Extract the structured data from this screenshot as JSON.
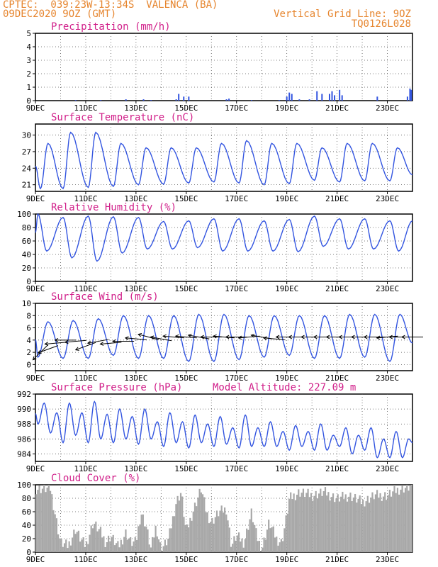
{
  "header": {
    "line1": "CPTEC:  039:23W-13:34S  VALENCA (BA)",
    "line2": "09DEC2020 9OZ (GMT)",
    "grid_note": "Vertical Grid Line: 9OZ",
    "code": "TQ0126L028"
  },
  "colors": {
    "header": "#e6852e",
    "title": "#d1208a",
    "series": "#3355e0",
    "cloud": "#a8a8a8",
    "arrow": "#000000"
  },
  "x_ticks": [
    "9DEC",
    "11DEC",
    "13DEC",
    "15DEC",
    "17DEC",
    "19DEC",
    "21DEC",
    "23DEC"
  ],
  "x_range_days": [
    9,
    24
  ],
  "chart_data": [
    {
      "id": "precip",
      "type": "bar",
      "title": "Precipitation (mm/h)",
      "ylim": [
        0,
        5
      ],
      "yticks": [
        "0",
        "1",
        "2",
        "3",
        "4",
        "5"
      ],
      "x": [
        10.6,
        11.6,
        12.6,
        13.3,
        13.6,
        14.6,
        14.7,
        14.9,
        15.1,
        16.6,
        16.7,
        17.6,
        18.7,
        19.0,
        19.1,
        19.2,
        19.5,
        19.9,
        20.2,
        20.4,
        20.7,
        20.8,
        20.9,
        21.1,
        21.2,
        22.6,
        23.8,
        23.9,
        23.95
      ],
      "values": [
        0.05,
        0.05,
        0.1,
        0.1,
        0.05,
        0.1,
        0.5,
        0.3,
        0.3,
        0.1,
        0.15,
        0.05,
        0.05,
        0.3,
        0.6,
        0.5,
        0.1,
        0.1,
        0.7,
        0.5,
        0.5,
        0.7,
        0.4,
        0.8,
        0.4,
        0.3,
        0.3,
        0.9,
        0.8
      ]
    },
    {
      "id": "temp",
      "type": "line",
      "title": "Surface Temperature (nC)",
      "ylim": [
        19.8,
        32
      ],
      "yticks": [
        "21",
        "24",
        "27",
        "30"
      ],
      "ytick_values": [
        21,
        24,
        27,
        30
      ],
      "max_x": [
        9.5,
        10.4,
        11.4,
        12.4,
        13.4,
        14.4,
        15.4,
        16.4,
        17.4,
        18.4,
        19.4,
        20.4,
        21.4,
        22.4,
        23.4
      ],
      "max_y": [
        28.5,
        30.5,
        30.5,
        28.5,
        27.7,
        27.7,
        27.7,
        28.5,
        29.0,
        28.5,
        28.5,
        27.7,
        28.5,
        28.5,
        27.7
      ],
      "min_x": [
        9.2,
        10.1,
        11.1,
        12.1,
        13.1,
        14.1,
        15.1,
        16.1,
        17.1,
        18.1,
        19.1,
        20.1,
        21.1,
        22.1,
        23.1
      ],
      "min_y": [
        20.3,
        20.3,
        20.5,
        20.7,
        21.0,
        21.1,
        21.3,
        21.5,
        21.3,
        21.0,
        21.2,
        21.8,
        21.5,
        21.7,
        21.7
      ],
      "end_y": 22.8
    },
    {
      "id": "rh",
      "type": "line",
      "title": "Relative Humidity (%)",
      "ylim": [
        0,
        100
      ],
      "yticks": [
        "0",
        "20",
        "40",
        "60",
        "80",
        "100"
      ],
      "ytick_values": [
        0,
        20,
        40,
        60,
        80,
        100
      ],
      "max_x": [
        9.1,
        10.1,
        11.1,
        12.1,
        13.1,
        14.1,
        15.1,
        16.1,
        17.1,
        18.1,
        19.1,
        20.1,
        21.1,
        22.1,
        23.1
      ],
      "max_y": [
        100,
        95,
        97,
        96,
        95,
        89,
        90,
        93,
        93,
        90,
        92,
        97,
        93,
        93,
        90
      ],
      "min_x": [
        9.45,
        10.45,
        11.45,
        12.45,
        13.45,
        14.45,
        15.45,
        16.45,
        17.45,
        18.45,
        19.45,
        20.45,
        21.45,
        22.45,
        23.45
      ],
      "min_y": [
        45,
        35,
        30,
        42,
        48,
        48,
        50,
        45,
        45,
        45,
        44,
        52,
        48,
        48,
        45
      ],
      "end_y": 90
    },
    {
      "id": "wind",
      "type": "line",
      "title": "Surface Wind (m/s)",
      "ylim": [
        -1,
        10
      ],
      "yticks": [
        "0",
        "2",
        "4",
        "6",
        "8",
        "10"
      ],
      "ytick_values": [
        0,
        2,
        4,
        6,
        8,
        10
      ],
      "max_x": [
        9.5,
        10.5,
        11.5,
        12.5,
        13.5,
        14.5,
        15.5,
        16.5,
        17.5,
        18.5,
        19.5,
        20.5,
        21.5,
        22.5,
        23.5
      ],
      "max_y": [
        7.0,
        7.2,
        7.5,
        8.0,
        8.0,
        8.0,
        8.2,
        8.2,
        8.0,
        8.0,
        8.0,
        8.0,
        8.2,
        8.2,
        8.2
      ],
      "min_x": [
        9.1,
        10.1,
        11.1,
        12.1,
        13.1,
        14.1,
        15.1,
        16.1,
        17.1,
        18.1,
        19.1,
        20.1,
        21.1,
        22.1,
        23.1
      ],
      "min_y": [
        1.2,
        1.0,
        1.0,
        1.5,
        1.0,
        1.0,
        0.5,
        0.5,
        0.8,
        1.2,
        1.5,
        1.0,
        1.0,
        1.2,
        0.5
      ],
      "end_y": 3.5,
      "vectors": {
        "x": [
          9.2,
          9.5,
          9.8,
          10.2,
          10.6,
          11.0,
          11.5,
          12.0,
          12.5,
          13.0,
          13.5,
          14.0,
          14.5,
          15.0,
          15.5,
          16.0,
          16.5,
          17.0,
          17.5,
          18.0,
          18.5,
          19.0,
          19.5,
          20.0,
          20.5,
          21.0,
          21.5,
          22.0,
          22.5,
          23.0,
          23.5,
          24.0
        ],
        "y": [
          2.0,
          2.5,
          3.5,
          4.0,
          3.8,
          3.0,
          3.8,
          3.5,
          3.8,
          4.2,
          4.5,
          4.2,
          4.5,
          4.5,
          4.5,
          4.5,
          4.5,
          4.5,
          4.5,
          4.5,
          4.2,
          4.5,
          4.5,
          4.5,
          4.5,
          4.5,
          4.5,
          4.5,
          4.5,
          4.5,
          4.5,
          4.5
        ],
        "dir_deg": [
          225,
          200,
          185,
          180,
          185,
          200,
          190,
          185,
          180,
          175,
          165,
          170,
          175,
          175,
          170,
          180,
          175,
          180,
          185,
          170,
          175,
          180,
          180,
          180,
          180,
          180,
          180,
          180,
          180,
          185,
          180,
          180
        ]
      }
    },
    {
      "id": "press",
      "type": "line",
      "title": "Surface Pressure (hPa)",
      "annotation": "Model Altitude: 227.09 m",
      "ylim": [
        983,
        992
      ],
      "yticks": [
        "984",
        "986",
        "988",
        "990",
        "992"
      ],
      "ytick_values": [
        984,
        986,
        988,
        990,
        992
      ],
      "max_x": [
        9.35,
        9.85,
        10.35,
        10.85,
        11.35,
        11.85,
        12.35,
        12.85,
        13.35,
        13.85,
        14.35,
        14.85,
        15.35,
        15.85,
        16.35,
        16.85,
        17.35,
        17.85,
        18.35,
        18.85,
        19.35,
        19.85,
        20.35,
        20.85,
        21.35,
        21.85,
        22.35,
        22.85,
        23.35,
        23.85
      ],
      "max_y": [
        990.8,
        989.5,
        990.8,
        989.5,
        991.0,
        989.3,
        990.0,
        989.0,
        990.0,
        988.3,
        989.5,
        988.3,
        989.2,
        988.0,
        989.0,
        987.5,
        989.2,
        987.5,
        988.3,
        987.0,
        987.8,
        987.0,
        988.0,
        986.5,
        987.5,
        986.5,
        987.5,
        986.0,
        987.0,
        986.0
      ],
      "min_x": [
        9.1,
        9.6,
        10.1,
        10.6,
        11.1,
        11.6,
        12.1,
        12.6,
        13.1,
        13.6,
        14.1,
        14.6,
        15.1,
        15.6,
        16.1,
        16.6,
        17.1,
        17.6,
        18.1,
        18.6,
        19.1,
        19.6,
        20.1,
        20.6,
        21.1,
        21.6,
        22.1,
        22.6,
        23.1,
        23.6
      ],
      "min_y": [
        988.0,
        986.8,
        985.5,
        986.5,
        985.5,
        986.0,
        985.5,
        986.0,
        985.3,
        986.0,
        985.0,
        985.5,
        984.8,
        985.5,
        985.0,
        985.3,
        984.8,
        985.0,
        985.0,
        985.0,
        984.5,
        985.0,
        984.5,
        984.5,
        985.0,
        984.0,
        984.5,
        983.5,
        983.5,
        983.5
      ],
      "end_y": 985.5
    },
    {
      "id": "cloud",
      "type": "area",
      "title": "Cloud Cover (%)",
      "ylim": [
        0,
        100
      ],
      "yticks": [
        "0",
        "20",
        "40",
        "60",
        "80",
        "100"
      ],
      "ytick_values": [
        0,
        20,
        40,
        60,
        80,
        100
      ],
      "x": [
        9.0,
        9.1,
        9.6,
        9.8,
        10.0,
        10.3,
        10.6,
        10.8,
        11.0,
        11.3,
        11.6,
        11.8,
        12.0,
        12.3,
        12.6,
        12.8,
        13.0,
        13.2,
        13.4,
        13.6,
        13.8,
        14.0,
        14.3,
        14.6,
        14.8,
        15.0,
        15.3,
        15.6,
        15.8,
        16.0,
        16.3,
        16.6,
        16.8,
        17.0,
        17.3,
        17.6,
        17.8,
        18.0,
        18.3,
        18.6,
        18.8,
        19.0,
        19.1,
        19.5,
        20.0,
        20.5,
        21.0,
        21.5,
        22.0,
        22.5,
        23.0,
        23.5,
        24.0
      ],
      "values": [
        95,
        95,
        95,
        55,
        15,
        10,
        35,
        20,
        10,
        45,
        30,
        15,
        25,
        8,
        30,
        15,
        15,
        60,
        40,
        5,
        40,
        5,
        20,
        75,
        90,
        30,
        65,
        95,
        60,
        45,
        60,
        65,
        10,
        25,
        15,
        60,
        25,
        5,
        45,
        20,
        15,
        55,
        80,
        90,
        85,
        90,
        80,
        85,
        75,
        85,
        85,
        95,
        98
      ]
    }
  ]
}
